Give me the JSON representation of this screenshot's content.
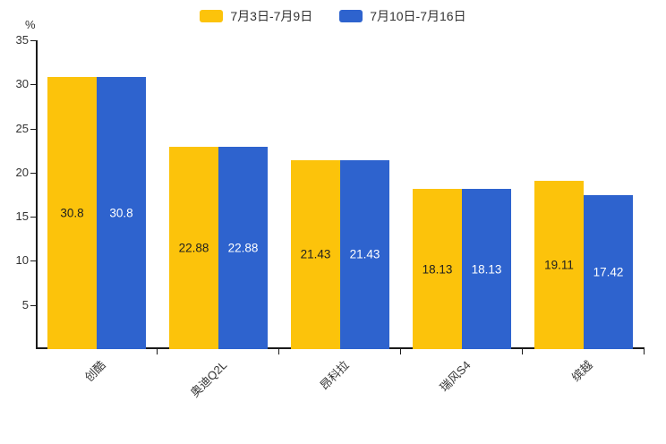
{
  "chart_data": {
    "type": "bar",
    "categories": [
      "创酷",
      "奥迪Q2L",
      "昂科拉",
      "瑞风S4",
      "缤越"
    ],
    "series": [
      {
        "name": "7月3日-7月9日",
        "color": "#fcc30b",
        "label_color": "#1f1f1f",
        "values": [
          30.8,
          22.88,
          21.43,
          18.13,
          19.11
        ]
      },
      {
        "name": "7月10日-7月16日",
        "color": "#2e63ce",
        "label_color": "#ffffff",
        "values": [
          30.8,
          22.88,
          21.43,
          18.13,
          17.42
        ]
      }
    ],
    "title": "",
    "xlabel": "",
    "ylabel": "%",
    "ylim": [
      0,
      35
    ],
    "yticks": [
      5,
      10,
      15,
      20,
      25,
      30,
      35
    ],
    "grid": false,
    "legend_position": "top",
    "axis_color": "#1a1a1a",
    "text_color": "#333333"
  }
}
